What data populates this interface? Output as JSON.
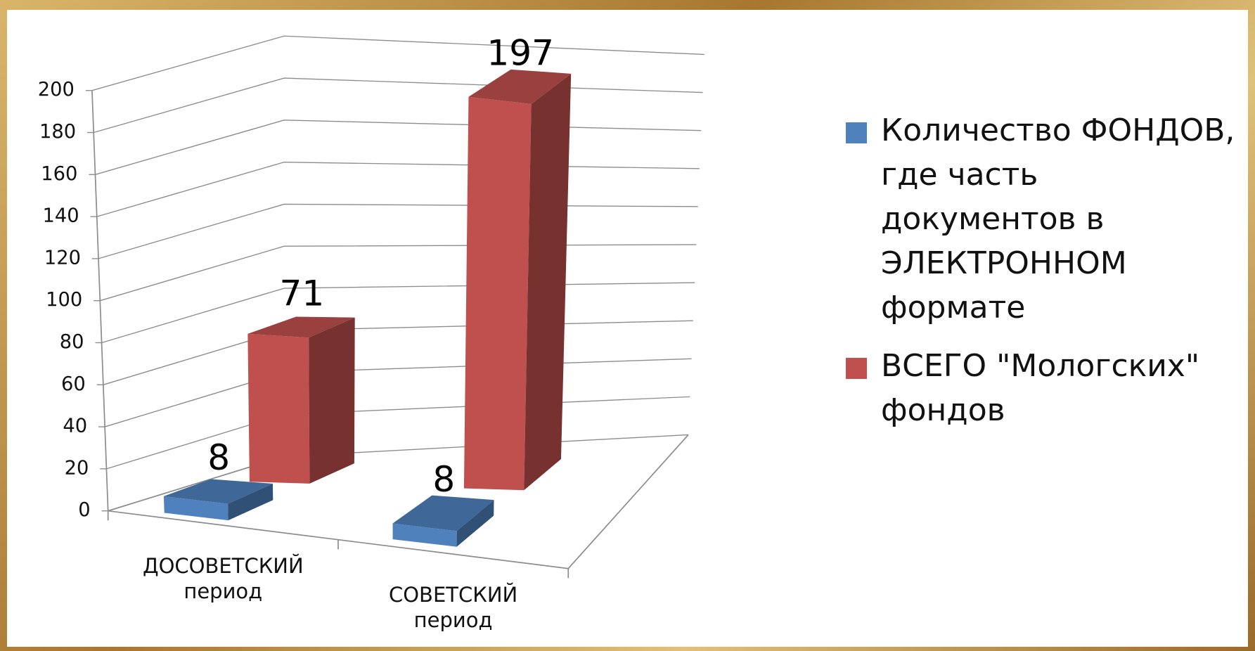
{
  "chart_data": {
    "type": "bar3d",
    "categories": [
      "ДОСОВЕТСКИЙ период",
      "СОВЕТСКИЙ период"
    ],
    "series": [
      {
        "name": "Количество ФОНДОВ, где часть документов в ЭЛЕКТРОННОМ формате",
        "color": "#4f81bd",
        "values": [
          8,
          8
        ]
      },
      {
        "name": "ВСЕГО \"Мологских\" фондов",
        "color": "#c0504d",
        "values": [
          71,
          197
        ]
      }
    ],
    "ylim": [
      0,
      200
    ],
    "yticks": [
      0,
      20,
      40,
      60,
      80,
      100,
      120,
      140,
      160,
      180,
      200
    ],
    "grid": true,
    "legend": "right"
  }
}
